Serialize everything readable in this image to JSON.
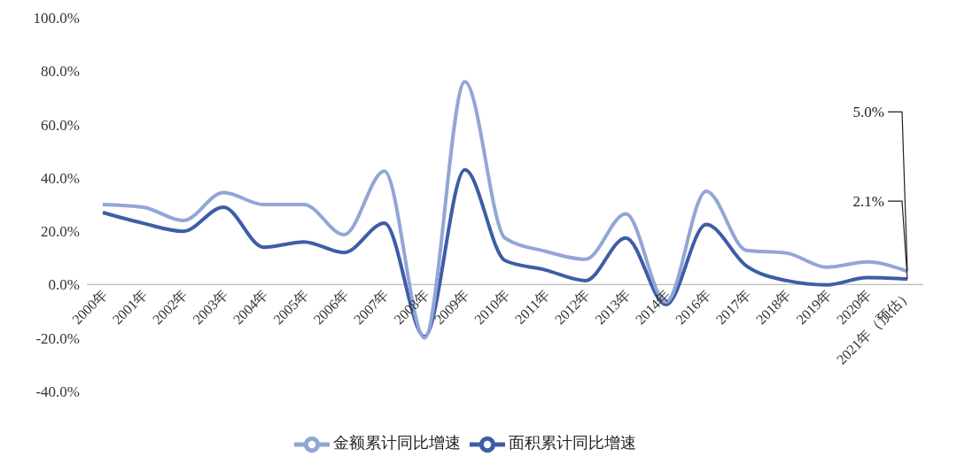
{
  "chart_data": {
    "type": "line",
    "categories": [
      "2000年",
      "2001年",
      "2002年",
      "2003年",
      "2004年",
      "2005年",
      "2006年",
      "2007年",
      "2008年",
      "2009年",
      "2010年",
      "2011年",
      "2012年",
      "2013年",
      "2014年",
      "2016年",
      "2017年",
      "2018年",
      "2019年",
      "2020年",
      "2021年（预估）"
    ],
    "series": [
      {
        "name": "面积累计同比增速",
        "color": "#3d5da6",
        "values": [
          27,
          23,
          20,
          29,
          14,
          16,
          12,
          23,
          -19.5,
          43,
          9,
          5.5,
          1.5,
          17.5,
          -7.5,
          22.5,
          7,
          1.5,
          -0.1,
          2.6,
          2.1
        ],
        "value_labels": [
          null,
          null,
          null,
          null,
          null,
          null,
          null,
          null,
          null,
          null,
          null,
          null,
          null,
          null,
          null,
          null,
          null,
          null,
          null,
          null,
          "2.1%"
        ]
      },
      {
        "name": "金额累计同比增速",
        "color": "#92a6d6",
        "values": [
          30,
          29,
          24,
          34.5,
          30,
          30,
          18.7,
          42.5,
          -20,
          76,
          17.4,
          12.5,
          9.5,
          26.5,
          -6.5,
          35,
          12.8,
          11.8,
          6.5,
          8.5,
          5.0
        ],
        "value_labels": [
          null,
          null,
          null,
          null,
          null,
          null,
          null,
          null,
          null,
          null,
          null,
          null,
          null,
          null,
          null,
          null,
          null,
          null,
          null,
          null,
          "5.0%"
        ]
      }
    ],
    "ylim": [
      -40,
      100
    ],
    "yticks": [
      {
        "value": -40,
        "label": "-40.0%"
      },
      {
        "value": -20,
        "label": "-20.0%"
      },
      {
        "value": 0,
        "label": "0.0%"
      },
      {
        "value": 20,
        "label": "20.0%"
      },
      {
        "value": 40,
        "label": "40.0%"
      },
      {
        "value": 60,
        "label": "60.0%"
      },
      {
        "value": 80,
        "label": "80.0%"
      },
      {
        "value": 100,
        "label": "100.0%"
      }
    ],
    "grid": false,
    "legend": "bottom",
    "marker": "none",
    "line_style": "solid"
  }
}
